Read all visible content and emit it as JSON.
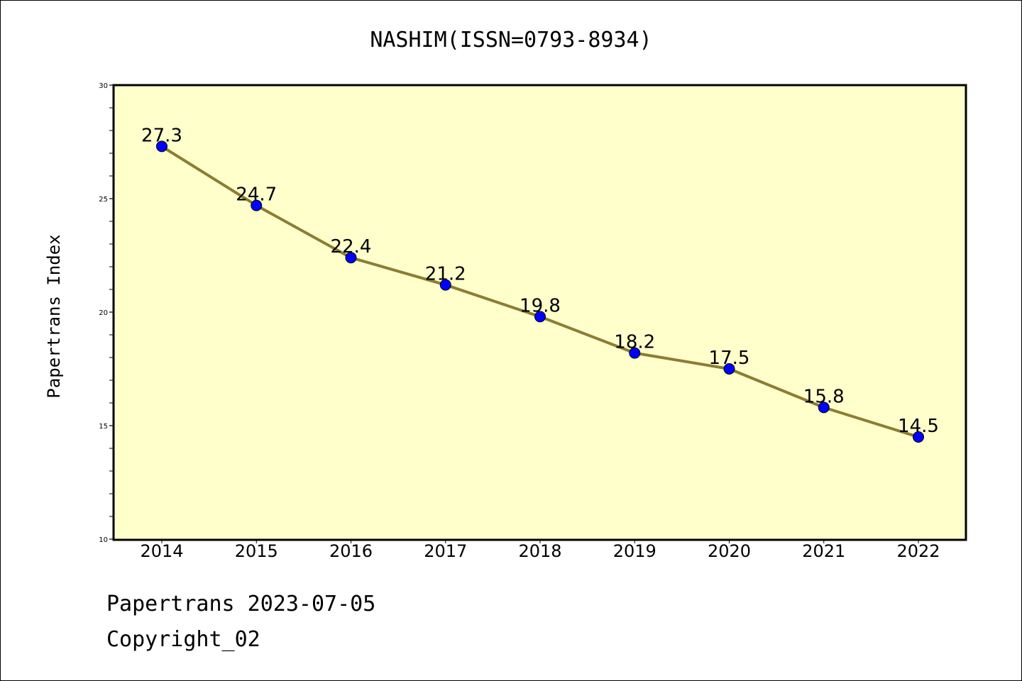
{
  "chart_data": {
    "type": "line",
    "title": "NASHIM(ISSN=0793-8934)",
    "xlabel": "",
    "ylabel": "Papertrans Index",
    "categories": [
      "2014",
      "2015",
      "2016",
      "2017",
      "2018",
      "2019",
      "2020",
      "2021",
      "2022"
    ],
    "series": [
      {
        "values": [
          27.3,
          24.7,
          22.4,
          21.2,
          19.8,
          18.2,
          17.5,
          15.8,
          14.5
        ]
      }
    ],
    "data_labels": [
      "27.3",
      "24.7",
      "22.4",
      "21.2",
      "19.8",
      "18.2",
      "17.5",
      "15.8",
      "14.5"
    ],
    "ylim": [
      10,
      30
    ],
    "yticks": [
      "10",
      "15",
      "20",
      "25",
      "30"
    ],
    "grid": false,
    "colors": {
      "plot_bg": "#ffffcc",
      "line": "#8b7d32",
      "marker": "#0000ff"
    }
  },
  "footer": {
    "line1": "Papertrans 2023-07-05",
    "line2": "Copyright_02"
  }
}
